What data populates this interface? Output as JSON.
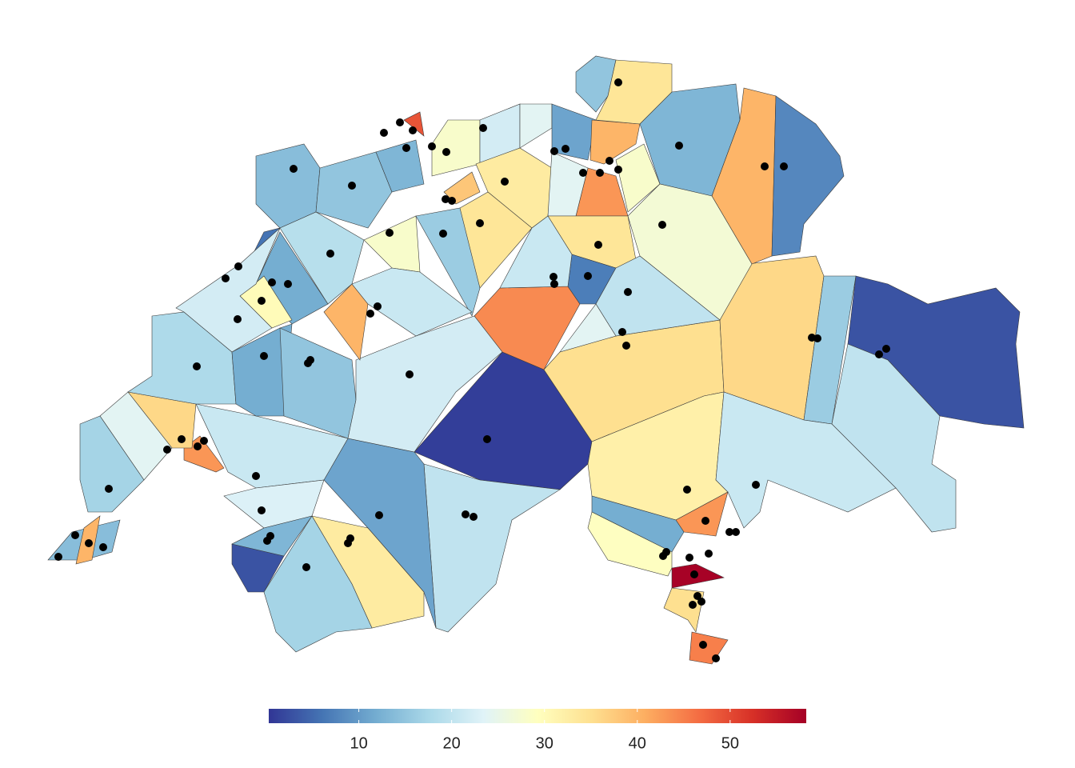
{
  "chart_data": {
    "type": "choropleth",
    "values": [
      1,
      44,
      35,
      36,
      16,
      3,
      20,
      32,
      21,
      43,
      12,
      29,
      58,
      35,
      45,
      20,
      11,
      33,
      17,
      3,
      21,
      43,
      36,
      24,
      17,
      14,
      40,
      18,
      12,
      15,
      22,
      12,
      6,
      30,
      40,
      14,
      15,
      13,
      49,
      28,
      22,
      24,
      33,
      38,
      34,
      11,
      40,
      43,
      28,
      24,
      15,
      34,
      13,
      40,
      8,
      27,
      34,
      7,
      20,
      24,
      21,
      16,
      28,
      19,
      21,
      22,
      23,
      13
    ],
    "clim": [
      0.3,
      58.2
    ],
    "cticks": [
      10,
      20,
      30,
      40,
      50
    ],
    "colors": [
      "#313695",
      "#4575b4",
      "#74add1",
      "#abd9e9",
      "#e0f3f8",
      "#ffffbf",
      "#fee090",
      "#fdae61",
      "#f46d43",
      "#d73027",
      "#a50026"
    ]
  }
}
